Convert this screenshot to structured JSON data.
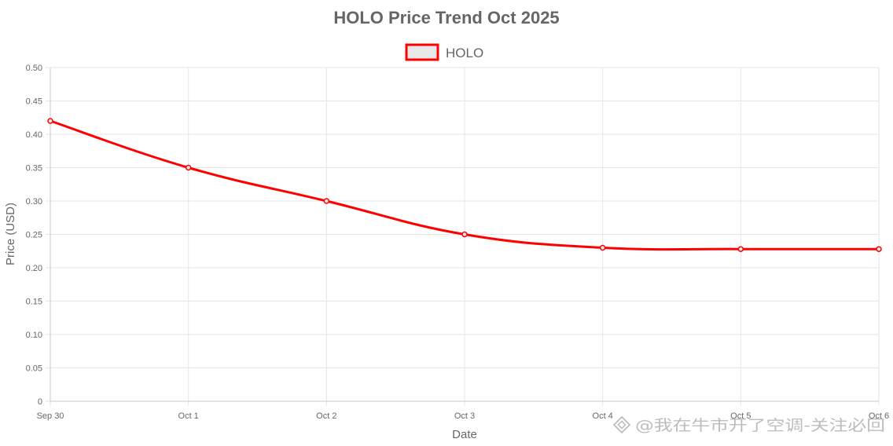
{
  "chart_data": {
    "type": "line",
    "title": "HOLO Price Trend Oct 2025",
    "xlabel": "Date",
    "ylabel": "Price (USD)",
    "categories": [
      "Sep 30",
      "Oct 1",
      "Oct 2",
      "Oct 3",
      "Oct 4",
      "Oct 5",
      "Oct 6"
    ],
    "series": [
      {
        "name": "HOLO",
        "values": [
          0.42,
          0.35,
          0.3,
          0.25,
          0.23,
          0.228,
          0.228
        ],
        "color": "#ff0000",
        "legend_fill": "#e8e8e8"
      }
    ],
    "ylim": [
      0,
      0.5
    ],
    "yticks": [
      "0",
      "0.05",
      "0.10",
      "0.15",
      "0.20",
      "0.25",
      "0.30",
      "0.35",
      "0.40",
      "0.45",
      "0.50"
    ],
    "ytick_values": [
      0,
      0.05,
      0.1,
      0.15,
      0.2,
      0.25,
      0.3,
      0.35,
      0.4,
      0.45,
      0.5
    ],
    "grid": true,
    "legend_position": "top-center"
  },
  "watermark": {
    "text": "@我在牛市开了空调-关注必回"
  }
}
